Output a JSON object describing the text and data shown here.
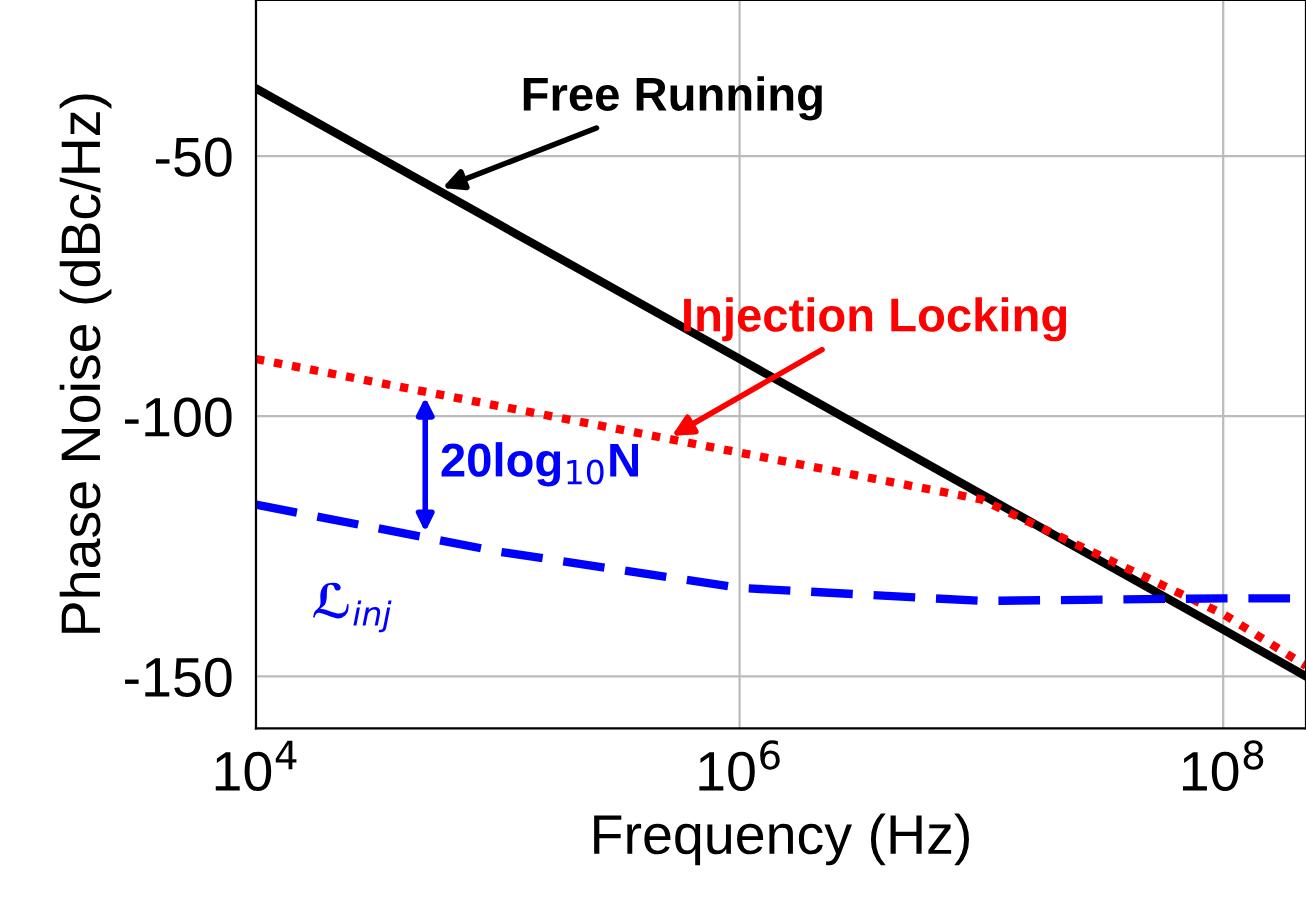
{
  "chart_data": {
    "type": "line",
    "xlabel": "Frequency (Hz)",
    "ylabel": "Phase Noise (dBc/Hz)",
    "log": "x",
    "grid": true,
    "legend": false,
    "marker": "none",
    "xlim": [
      10000,
      220000000
    ],
    "xticks": [
      {
        "value": 10000,
        "label": "10$^{4}$"
      },
      {
        "value": 1000000,
        "label": "10$^{6}$"
      },
      {
        "value": 100000000,
        "label": "10$^{8}$"
      }
    ],
    "ylim": [
      -160,
      -20
    ],
    "yticks": [
      -150,
      -100,
      -50
    ],
    "x": [
      10000,
      100000,
      1000000,
      10000000,
      100000000,
      220000000
    ],
    "series": [
      {
        "name": "Free Running",
        "color": "#000000",
        "line_style": "solid",
        "values": [
          -37,
          -63,
          -89,
          -115,
          -141,
          -150
        ]
      },
      {
        "name": "Injection Locking",
        "color": "#ff0000",
        "line_style": "dotted",
        "values": [
          -89,
          -98,
          -107,
          -116,
          -138,
          -148
        ]
      },
      {
        "name": "ℒ$_{inj}$",
        "color": "#0000ff",
        "line_style": "dashed",
        "values": [
          -117,
          -126,
          -133,
          -135.5,
          -135,
          -135
        ]
      }
    ],
    "annotations": [
      "20log$_{10}$N"
    ]
  }
}
